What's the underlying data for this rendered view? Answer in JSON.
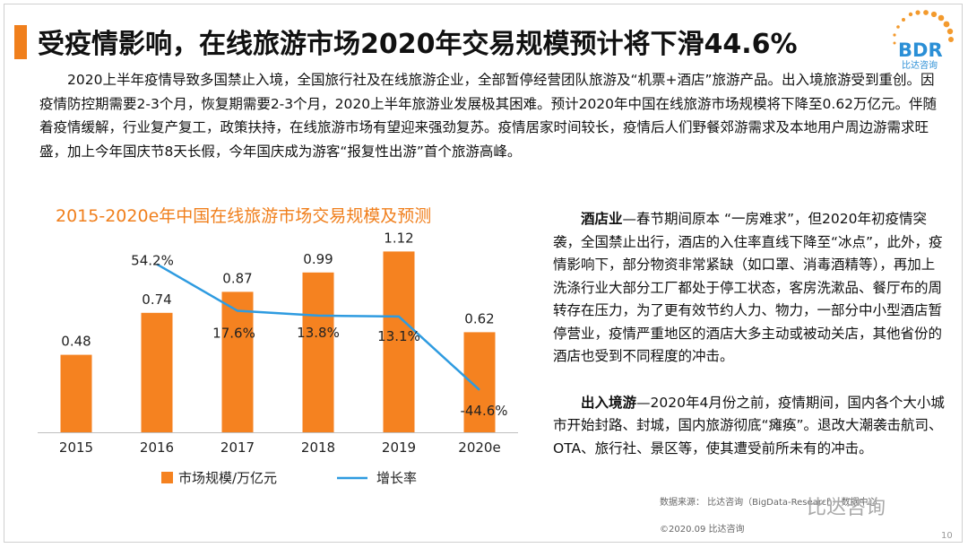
{
  "header": {
    "title": "受疫情影响，在线旅游市场2020年交易规模预计将下滑44.6%",
    "logo_text": "BDR",
    "logo_subtext": "比达咨询"
  },
  "intro": "2020上半年疫情导致多国禁止入境，全国旅行社及在线旅游企业，全部暂停经营团队旅游及“机票+酒店”旅游产品。出入境旅游受到重创。因疫情防控期需要2-3个月，恢复期需要2-3个月，2020上半年旅游业发展极其困难。预计2020年中国在线旅游市场规模将下降至0.62万亿元。伴随着疫情缓解，行业复产复工，政策扶持，在线旅游市场有望迎来强劲复苏。疫情居家时间较长，疫情后人们野餐郊游需求及本地用户周边游需求旺盛，加上今年国庆节8天长假，今年国庆成为游客“报复性出游”首个旅游高峰。",
  "side": {
    "p1_lead": "酒店业",
    "p1_text": "—春节期间原本 “一房难求”，但2020年初疫情突袭，全国禁止出行，酒店的入住率直线下降至“冰点”，此外，疫情影响下，部分物资非常紧缺（如口罩、消毒酒精等），再加上洗涤行业大部分工厂都处于停工状态，客房洗漱品、餐厅布的周转存在压力，为了更有效节约人力、物力，一部分中小型酒店暂停营业，疫情严重地区的酒店大多主动或被动关店，其他省份的酒店也受到不同程度的冲击。",
    "p2_lead": "出入境游",
    "p2_text": "—2020年4月份之前，疫情期间，国内各个大小城市开始封路、封城，国内旅游彻底“瘫痪”。退改大潮袭击航司、OTA、旅行社、景区等，使其遭受前所未有的冲击。"
  },
  "footer": {
    "source": "数据来源： 比达咨询（BigData-Research）数据中心",
    "copyright": "©2020.09 比达咨询",
    "watermark": "比达咨询",
    "page": "10"
  },
  "colors": {
    "bar": "#f58220",
    "line": "#2e9be0",
    "title": "#f07f1c"
  },
  "chart_data": {
    "type": "bar+line",
    "title": "2015-2020e年中国在线旅游市场交易规模及预测",
    "categories": [
      "2015",
      "2016",
      "2017",
      "2018",
      "2019",
      "2020e"
    ],
    "series": [
      {
        "name": "市场规模/万亿元",
        "type": "bar",
        "values": [
          0.48,
          0.74,
          0.87,
          0.99,
          1.12,
          0.62
        ],
        "labels": [
          "0.48",
          "0.74",
          "0.87",
          "0.99",
          "1.12",
          "0.62"
        ]
      },
      {
        "name": "增长率",
        "type": "line",
        "x": [
          "2016",
          "2017",
          "2018",
          "2019",
          "2020e"
        ],
        "values": [
          54.2,
          17.6,
          13.8,
          13.1,
          -44.6
        ],
        "labels": [
          "54.2%",
          "17.6%",
          "13.8%",
          "13.1%",
          "-44.6%"
        ]
      }
    ],
    "ylim_bar": [
      0,
      1.3
    ],
    "ylim_line": [
      -80,
      80
    ],
    "legend": "bottom",
    "grid": false
  }
}
